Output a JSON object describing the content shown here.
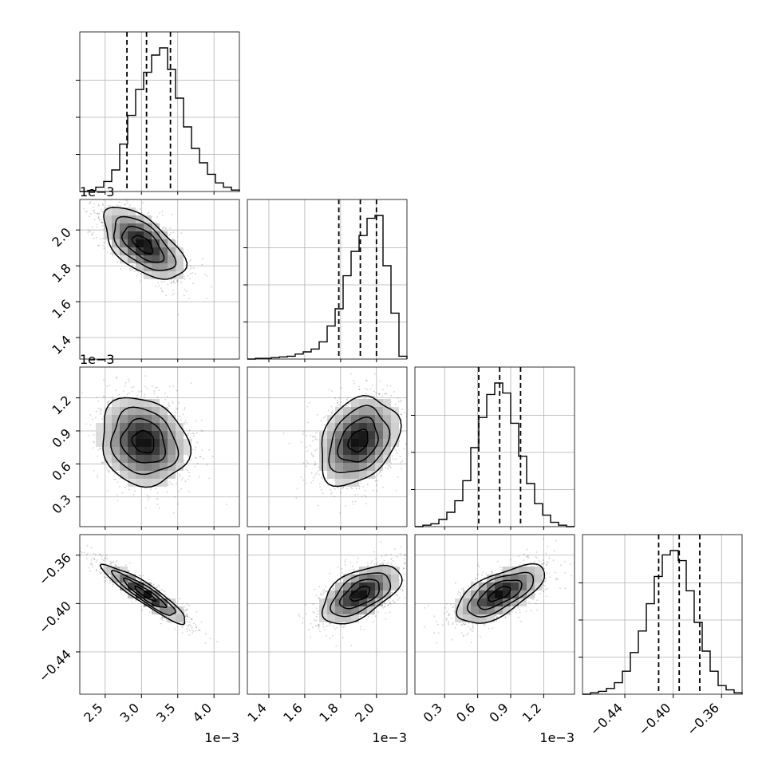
{
  "chart_data": {
    "type": "corner",
    "ranges": [
      [
        2.15,
        4.35
      ],
      [
        1.28,
        2.17
      ],
      [
        0.03,
        1.48
      ],
      [
        -0.475,
        -0.343
      ]
    ],
    "offsets": [
      "1e−3",
      "1e−3",
      "1e−3",
      ""
    ],
    "ticks": [
      {
        "values": [
          2.5,
          3.0,
          3.5,
          4.0
        ],
        "labels": [
          "2.5",
          "3.0",
          "3.5",
          "4.0"
        ]
      },
      {
        "values": [
          1.4,
          1.6,
          1.8,
          2.0
        ],
        "labels": [
          "1.4",
          "1.6",
          "1.8",
          "2.0"
        ]
      },
      {
        "values": [
          0.3,
          0.6,
          0.9,
          1.2
        ],
        "labels": [
          "0.3",
          "0.6",
          "0.9",
          "1.2"
        ]
      },
      {
        "values": [
          -0.44,
          -0.4,
          -0.36
        ],
        "labels": [
          "−0.44",
          "−0.40",
          "−0.36"
        ]
      }
    ],
    "quantiles": [
      [
        2.8,
        3.07,
        3.4
      ],
      [
        1.79,
        1.91,
        2.0
      ],
      [
        0.61,
        0.8,
        0.99
      ],
      [
        -0.412,
        -0.395,
        -0.378
      ]
    ],
    "histograms": [
      {
        "edges_start": 2.15,
        "bin_width": 0.11,
        "counts": [
          0.0,
          0.008,
          0.03,
          0.07,
          0.15,
          0.33,
          0.53,
          0.71,
          0.83,
          0.95,
          1.0,
          0.85,
          0.65,
          0.45,
          0.3,
          0.2,
          0.12,
          0.06,
          0.03,
          0.01
        ]
      },
      {
        "edges_start": 1.28,
        "bin_width": 0.0445,
        "counts": [
          0.0,
          0.005,
          0.005,
          0.01,
          0.015,
          0.02,
          0.035,
          0.05,
          0.07,
          0.12,
          0.23,
          0.35,
          0.58,
          0.75,
          0.86,
          0.98,
          1.0,
          0.65,
          0.32,
          0.02
        ]
      },
      {
        "edges_start": 0.03,
        "bin_width": 0.0725,
        "counts": [
          0.0,
          0.01,
          0.02,
          0.05,
          0.1,
          0.18,
          0.32,
          0.55,
          0.76,
          0.92,
          1.0,
          0.93,
          0.72,
          0.49,
          0.3,
          0.16,
          0.08,
          0.03,
          0.01,
          0.0
        ]
      },
      {
        "edges_start": -0.475,
        "bin_width": 0.0066,
        "counts": [
          0.0,
          0.01,
          0.02,
          0.04,
          0.08,
          0.16,
          0.29,
          0.44,
          0.63,
          0.82,
          0.97,
          1.0,
          0.93,
          0.72,
          0.5,
          0.3,
          0.16,
          0.06,
          0.03,
          0.01
        ]
      }
    ],
    "pairs": [
      {
        "x": 0,
        "y": 1,
        "mean": [
          3.02,
          1.92
        ],
        "sd": [
          0.28,
          0.1
        ],
        "rho": -0.6
      },
      {
        "x": 0,
        "y": 2,
        "mean": [
          3.03,
          0.8
        ],
        "sd": [
          0.3,
          0.2
        ],
        "rho": -0.15
      },
      {
        "x": 1,
        "y": 2,
        "mean": [
          1.9,
          0.81
        ],
        "sd": [
          0.11,
          0.2
        ],
        "rho": 0.3
      },
      {
        "x": 0,
        "y": 3,
        "mean": [
          3.05,
          -0.392
        ],
        "sd": [
          0.29,
          0.012
        ],
        "rho": -0.92
      },
      {
        "x": 1,
        "y": 3,
        "mean": [
          1.91,
          -0.392
        ],
        "sd": [
          0.11,
          0.012
        ],
        "rho": 0.55
      },
      {
        "x": 2,
        "y": 3,
        "mean": [
          0.8,
          -0.392
        ],
        "sd": [
          0.2,
          0.012
        ],
        "rho": 0.65
      }
    ],
    "grid": true,
    "colors": {
      "axes": "#000000",
      "grid": "#b0b0b0",
      "hist": "#000000",
      "contour": "#000000",
      "points": "#000000"
    }
  }
}
